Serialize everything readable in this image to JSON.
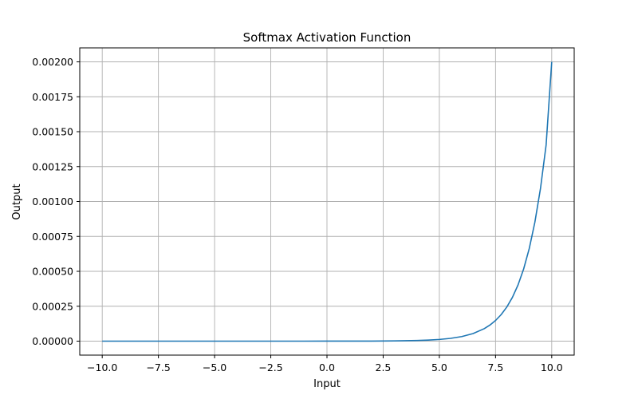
{
  "chart_data": {
    "type": "line",
    "title": "Softmax Activation Function",
    "xlabel": "Input",
    "ylabel": "Output",
    "xlim": [
      -11.0,
      11.0
    ],
    "ylim": [
      -0.0001,
      0.0021
    ],
    "grid": true,
    "line_color": "#1f77b4",
    "grid_color": "#b0b0b0",
    "xticks": [
      -10.0,
      -7.5,
      -5.0,
      -2.5,
      0.0,
      2.5,
      5.0,
      7.5,
      10.0
    ],
    "xtick_labels": [
      "−10.0",
      "−7.5",
      "−5.0",
      "−2.5",
      "0.0",
      "2.5",
      "5.0",
      "7.5",
      "10.0"
    ],
    "yticks": [
      0.0,
      0.00025,
      0.0005,
      0.00075,
      0.001,
      0.00125,
      0.0015,
      0.00175,
      0.002
    ],
    "ytick_labels": [
      "0.00000",
      "0.00025",
      "0.00050",
      "0.00075",
      "0.00100",
      "0.00125",
      "0.00150",
      "0.00175",
      "0.00200"
    ],
    "series": [
      {
        "x": [
          -10.0,
          -8.0,
          -6.0,
          -4.0,
          -2.0,
          0.0,
          1.0,
          2.0,
          3.0,
          4.0,
          4.5,
          5.0,
          5.5,
          6.0,
          6.5,
          7.0,
          7.25,
          7.5,
          7.75,
          8.0,
          8.25,
          8.5,
          8.75,
          9.0,
          9.25,
          9.5,
          9.75,
          10.0
        ],
        "y": [
          0.0,
          0.0,
          0.0,
          0.0,
          0.0,
          1e-07,
          2e-07,
          6e-07,
          1.6e-06,
          4.4e-06,
          7.4e-06,
          1.21e-05,
          2e-05,
          3.3e-05,
          5.44e-05,
          8.97e-05,
          0.0001152,
          0.0001479,
          0.00019,
          0.000244,
          0.0003133,
          0.0004022,
          0.0005164,
          0.0006631,
          0.0008515,
          0.0010933,
          0.0014039,
          0.002
        ]
      }
    ]
  }
}
